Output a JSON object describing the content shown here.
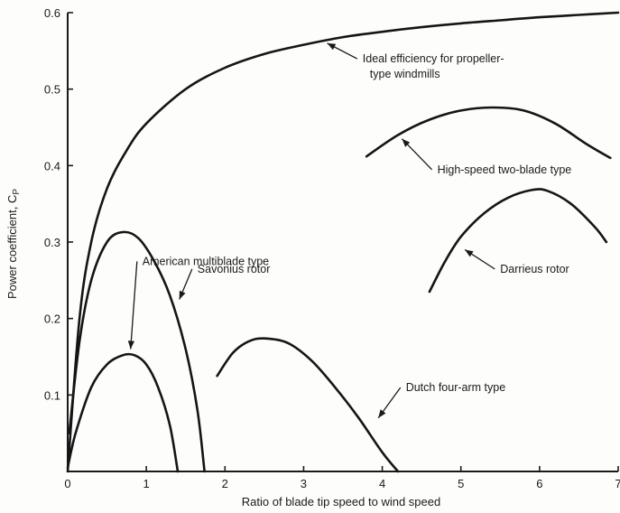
{
  "chart_data": {
    "type": "line",
    "title": "",
    "xlabel": "Ratio of blade tip speed to wind speed",
    "ylabel": "Power coefficient, C",
    "ylabel_subscript": "P",
    "xlim": [
      0,
      7
    ],
    "ylim": [
      0,
      0.6
    ],
    "grid": false,
    "legend": "none",
    "x_ticks": [
      {
        "value": 0,
        "label": "0"
      },
      {
        "value": 1,
        "label": "1"
      },
      {
        "value": 2,
        "label": "2"
      },
      {
        "value": 3,
        "label": "3"
      },
      {
        "value": 4,
        "label": "4"
      },
      {
        "value": 5,
        "label": "5"
      },
      {
        "value": 6,
        "label": "6"
      },
      {
        "value": 7,
        "label": "7"
      }
    ],
    "y_ticks": [
      {
        "value": 0.1,
        "label": "0.1"
      },
      {
        "value": 0.2,
        "label": "0.2"
      },
      {
        "value": 0.3,
        "label": "0.3"
      },
      {
        "value": 0.4,
        "label": "0.4"
      },
      {
        "value": 0.5,
        "label": "0.5"
      },
      {
        "value": 0.6,
        "label": "0.6"
      }
    ],
    "series": [
      {
        "id": "ideal",
        "points": [
          [
            0,
            0
          ],
          [
            0.15,
            0.2
          ],
          [
            0.3,
            0.3
          ],
          [
            0.5,
            0.37
          ],
          [
            0.75,
            0.42
          ],
          [
            1,
            0.455
          ],
          [
            1.5,
            0.5
          ],
          [
            2,
            0.528
          ],
          [
            2.5,
            0.546
          ],
          [
            3,
            0.558
          ],
          [
            3.5,
            0.568
          ],
          [
            4,
            0.575
          ],
          [
            4.5,
            0.581
          ],
          [
            5,
            0.586
          ],
          [
            5.5,
            0.59
          ],
          [
            6,
            0.594
          ],
          [
            6.5,
            0.597
          ],
          [
            7,
            0.6
          ]
        ]
      },
      {
        "id": "american-multiblade",
        "points": [
          [
            0,
            0.005
          ],
          [
            0.1,
            0.05
          ],
          [
            0.3,
            0.11
          ],
          [
            0.5,
            0.14
          ],
          [
            0.7,
            0.152
          ],
          [
            0.85,
            0.152
          ],
          [
            1,
            0.14
          ],
          [
            1.15,
            0.11
          ],
          [
            1.3,
            0.06
          ],
          [
            1.4,
            0
          ]
        ]
      },
      {
        "id": "savonius",
        "points": [
          [
            0.02,
            0.05
          ],
          [
            0.15,
            0.17
          ],
          [
            0.3,
            0.25
          ],
          [
            0.5,
            0.3
          ],
          [
            0.7,
            0.313
          ],
          [
            0.9,
            0.305
          ],
          [
            1.1,
            0.275
          ],
          [
            1.3,
            0.23
          ],
          [
            1.5,
            0.16
          ],
          [
            1.65,
            0.08
          ],
          [
            1.74,
            0
          ]
        ]
      },
      {
        "id": "dutch-four-arm",
        "points": [
          [
            1.9,
            0.125
          ],
          [
            2.1,
            0.155
          ],
          [
            2.3,
            0.17
          ],
          [
            2.5,
            0.174
          ],
          [
            2.8,
            0.168
          ],
          [
            3.1,
            0.145
          ],
          [
            3.4,
            0.11
          ],
          [
            3.7,
            0.07
          ],
          [
            4,
            0.025
          ],
          [
            4.2,
            0
          ]
        ]
      },
      {
        "id": "high-speed-two-blade",
        "points": [
          [
            3.8,
            0.412
          ],
          [
            4.2,
            0.44
          ],
          [
            4.6,
            0.46
          ],
          [
            5,
            0.472
          ],
          [
            5.4,
            0.476
          ],
          [
            5.8,
            0.472
          ],
          [
            6.2,
            0.455
          ],
          [
            6.6,
            0.428
          ],
          [
            6.9,
            0.41
          ]
        ]
      },
      {
        "id": "darrieus",
        "points": [
          [
            4.6,
            0.235
          ],
          [
            4.8,
            0.275
          ],
          [
            5,
            0.307
          ],
          [
            5.3,
            0.338
          ],
          [
            5.6,
            0.358
          ],
          [
            5.9,
            0.368
          ],
          [
            6.1,
            0.367
          ],
          [
            6.4,
            0.35
          ],
          [
            6.7,
            0.32
          ],
          [
            6.85,
            0.3
          ]
        ]
      }
    ],
    "annotations": [
      {
        "id": "ideal",
        "lines": [
          "Ideal efficiency for propeller-",
          "type windmills"
        ],
        "target": [
          3.3,
          0.56
        ],
        "text_at": [
          3.75,
          0.535
        ]
      },
      {
        "id": "high-speed-two-blade",
        "lines": [
          "High-speed two-blade type"
        ],
        "target": [
          4.25,
          0.435
        ],
        "text_at": [
          4.7,
          0.39
        ]
      },
      {
        "id": "american-multiblade",
        "lines": [
          "American multiblade type"
        ],
        "target": [
          0.8,
          0.16
        ],
        "text_at": [
          0.95,
          0.27
        ]
      },
      {
        "id": "savonius",
        "lines": [
          "Savonius rotor"
        ],
        "target": [
          1.42,
          0.225
        ],
        "text_at": [
          1.65,
          0.26
        ]
      },
      {
        "id": "darrieus",
        "lines": [
          "Darrieus rotor"
        ],
        "target": [
          5.05,
          0.29
        ],
        "text_at": [
          5.5,
          0.26
        ]
      },
      {
        "id": "dutch-four-arm",
        "lines": [
          "Dutch four-arm type"
        ],
        "target": [
          3.95,
          0.07
        ],
        "text_at": [
          4.3,
          0.105
        ]
      }
    ]
  }
}
